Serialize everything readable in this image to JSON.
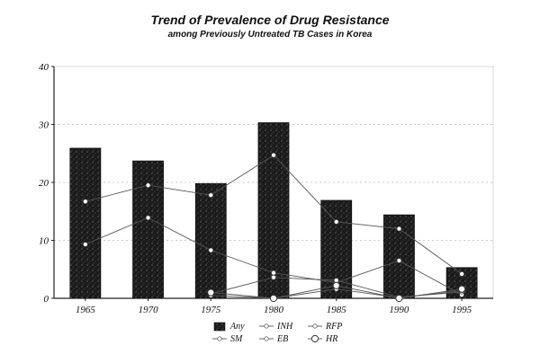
{
  "chart_data": {
    "type": "bar",
    "title": "Trend of Prevalence of Drug Resistance",
    "subtitle": "among Previously Untreated TB Cases in Korea",
    "xlabel": "",
    "ylabel": "",
    "categories": [
      "1965",
      "1970",
      "1975",
      "1980",
      "1985",
      "1990",
      "1995"
    ],
    "ylim": [
      0,
      40
    ],
    "yticks": [
      "0",
      "10",
      "20",
      "30",
      "40"
    ],
    "grid": true,
    "legend_position": "bottom",
    "series": [
      {
        "name": "Any",
        "kind": "bar",
        "values": [
          25.9,
          23.7,
          19.8,
          30.3,
          16.9,
          14.4,
          5.3
        ]
      },
      {
        "name": "INH",
        "kind": "line",
        "marker": "dot",
        "values": [
          16.7,
          19.5,
          17.8,
          24.7,
          13.2,
          12.0,
          4.2
        ]
      },
      {
        "name": "RFP",
        "kind": "line",
        "marker": "dot",
        "values": [
          9.3,
          13.9,
          8.3,
          4.4,
          2.7,
          6.5,
          0.6
        ]
      },
      {
        "name": "SM",
        "kind": "line",
        "marker": "dot",
        "values": [
          null,
          null,
          0.8,
          3.6,
          3.1,
          0.2,
          1.1
        ]
      },
      {
        "name": "EB",
        "kind": "line",
        "marker": "dot",
        "values": [
          null,
          null,
          0.5,
          0.0,
          1.6,
          0.1,
          1.3
        ]
      },
      {
        "name": "HR",
        "kind": "line",
        "marker": "open-circle",
        "values": [
          null,
          null,
          1.0,
          0.0,
          2.2,
          0.0,
          1.6
        ]
      }
    ]
  }
}
